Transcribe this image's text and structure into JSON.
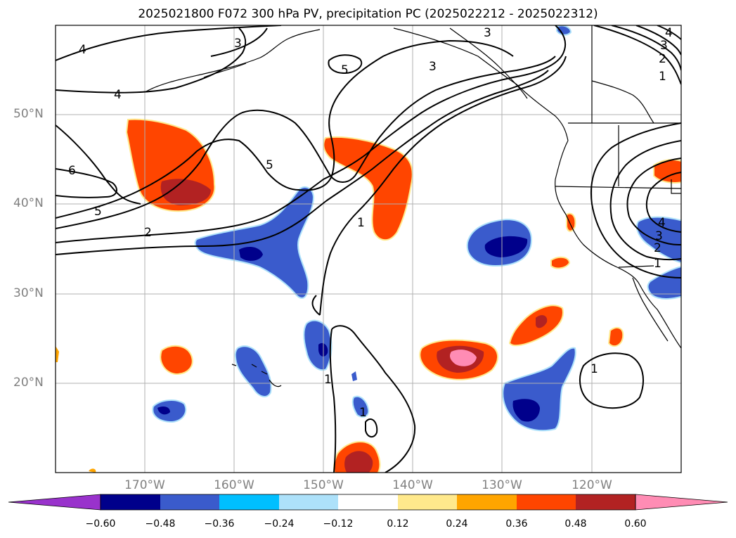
{
  "title": "2025021800 F072 300 hPa PV, precipitation PC (2025022212 - 2025022312)",
  "lat_labels": [
    "50°N",
    "40°N",
    "30°N",
    "20°N"
  ],
  "lon_labels": [
    "170°W",
    "160°W",
    "150°W",
    "140°W",
    "130°W",
    "120°W"
  ],
  "contour_labels": [
    "4",
    "3",
    "3",
    "5",
    "3",
    "4",
    "4",
    "3",
    "2",
    "1",
    "6",
    "5",
    "2",
    "5",
    "1",
    "4",
    "3",
    "2",
    "1",
    "1",
    "1",
    "1"
  ],
  "colorbar": {
    "ticks": [
      "−0.60",
      "−0.48",
      "−0.36",
      "−0.24",
      "−0.12",
      "0.12",
      "0.24",
      "0.36",
      "0.48",
      "0.60"
    ],
    "colors": [
      "#9932CC",
      "#00008B",
      "#3A5BCC",
      "#00BFFF",
      "#ADE1FA",
      "#FFFFFF",
      "#FFE98C",
      "#FFA500",
      "#FF4500",
      "#B22222",
      "#FF8CB4"
    ]
  }
}
